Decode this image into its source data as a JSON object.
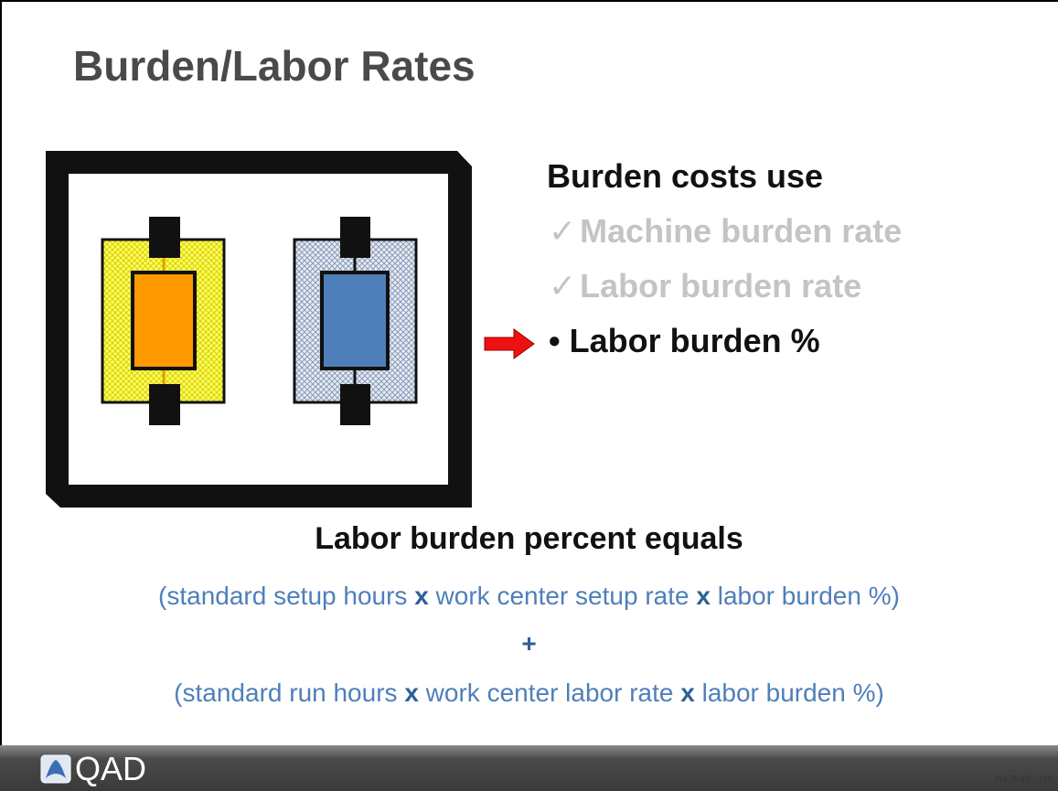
{
  "title": "Burden/Labor Rates",
  "list": {
    "heading": "Burden costs use",
    "items": [
      {
        "marker": "✓",
        "text": "Machine burden rate"
      },
      {
        "marker": "✓",
        "text": "Labor burden rate"
      },
      {
        "marker": "•",
        "text": "Labor burden %"
      }
    ]
  },
  "formula": {
    "heading": "Labor burden percent equals",
    "lines": [
      [
        "(standard setup hours ",
        "x",
        " work center setup rate ",
        "x",
        " labor burden %)"
      ],
      [
        "+"
      ],
      [
        "(standard run hours ",
        "x",
        " work center labor rate ",
        "x",
        " labor burden %)"
      ]
    ]
  },
  "footer": {
    "logo": "QAD",
    "code": "WCR-BC-110"
  }
}
